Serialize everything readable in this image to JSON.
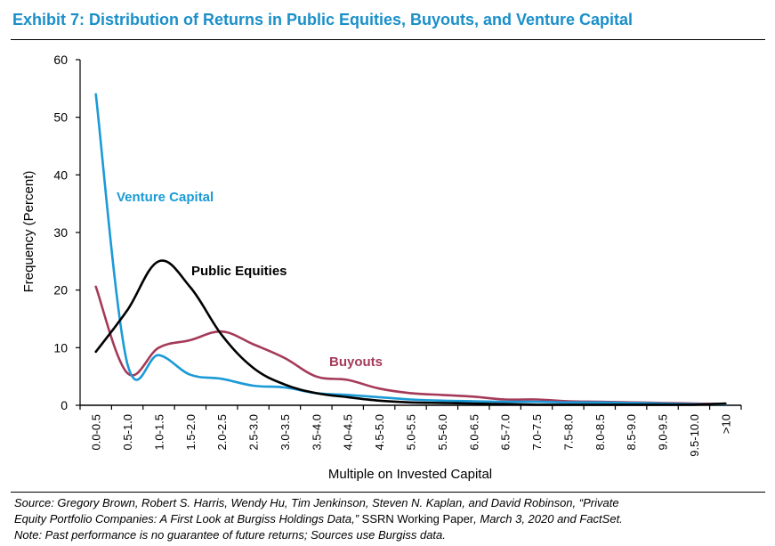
{
  "title": "Exhibit 7: Distribution of Returns in Public Equities, Buyouts, and Venture Capital",
  "source": {
    "line1_a": "Source: Gregory Brown, Robert S. Harris, Wendy Hu, Tim Jenkinson, Steven N. Kaplan, and David Robinson, “Private",
    "line2_a": "Equity Portfolio Companies: A First Look at Burgiss Holdings Data,”",
    "line2_b": " SSRN Working Paper",
    "line2_c": ", March 3, 2020 and FactSet.",
    "line3": "Note: Past performance is no guarantee of future returns; Sources use Burgiss data."
  },
  "chart_data": {
    "type": "line",
    "xlabel": "Multiple on Invested Capital",
    "ylabel": "Frequency (Percent)",
    "ylim": [
      0,
      60
    ],
    "yticks": [
      0,
      10,
      20,
      30,
      40,
      50,
      60
    ],
    "categories": [
      "0.0-0.5",
      "0.5-1.0",
      "1.0-1.5",
      "1.5-2.0",
      "2.0-2.5",
      "2.5-3.0",
      "3.0-3.5",
      "3.5-4.0",
      "4.0-4.5",
      "4.5-5.0",
      "5.0-5.5",
      "5.5-6.0",
      "6.0-6.5",
      "6.5-7.0",
      "7.0-7.5",
      "7.5-8.0",
      "8.0-8.5",
      "8.5-9.0",
      "9.0-9.5",
      "9.5-10.0",
      ">10"
    ],
    "series": [
      {
        "name": "Venture Capital",
        "color": "#1a9ad6",
        "values": [
          54,
          7.2,
          8.7,
          5.3,
          4.6,
          3.4,
          3.1,
          2.1,
          1.8,
          1.4,
          1.0,
          0.8,
          0.7,
          0.6,
          0.6,
          0.5,
          0.5,
          0.4,
          0.3,
          0.2,
          0.2
        ]
      },
      {
        "name": "Public Equities",
        "color": "#000000",
        "values": [
          9.3,
          16.5,
          25,
          20.5,
          12.2,
          6.5,
          3.6,
          2.1,
          1.4,
          0.8,
          0.5,
          0.4,
          0.3,
          0.2,
          0.1,
          0.1,
          0.1,
          0.1,
          0.1,
          0.1,
          0.3
        ]
      },
      {
        "name": "Buyouts",
        "color": "#a53a58",
        "values": [
          20.6,
          5.6,
          10,
          11.3,
          12.8,
          10.6,
          8.2,
          5.0,
          4.4,
          2.9,
          2.1,
          1.8,
          1.5,
          1.0,
          1.0,
          0.7,
          0.6,
          0.5,
          0.4,
          0.3,
          0.2
        ]
      }
    ],
    "annotations": [
      {
        "text": "Venture Capital",
        "series": "Venture Capital",
        "color": "#1a9ad6"
      },
      {
        "text": "Public Equities",
        "series": "Public Equities",
        "color": "#000000"
      },
      {
        "text": "Buyouts",
        "series": "Buyouts",
        "color": "#a53a58"
      }
    ]
  }
}
